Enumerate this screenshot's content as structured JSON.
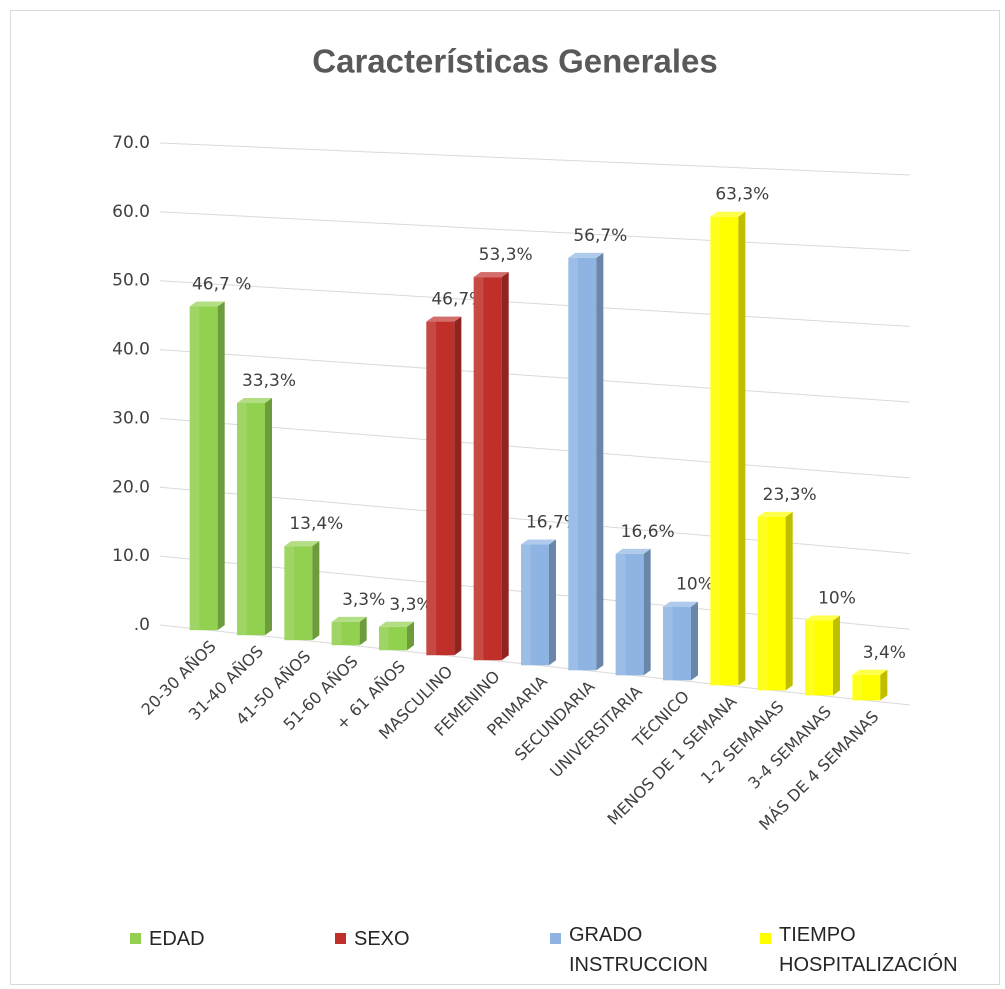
{
  "chart_data": {
    "type": "bar",
    "title": "Características Generales",
    "categories": [
      "20-30 AÑOS",
      "31-40 AÑOS",
      "41-50 AÑOS",
      "51-60 AÑOS",
      "+ 61 AÑOS",
      "MASCULINO",
      "FEMENINO",
      "PRIMARIA",
      "SECUNDARIA",
      "UNIVERSITARIA",
      "TÉCNICO",
      "MENOS DE 1 SEMANA",
      "1-2 SEMANAS",
      "3-4 SEMANAS",
      "MÁS DE 4 SEMANAS"
    ],
    "series": [
      {
        "name": "EDAD",
        "color": "#92d050",
        "values": [
          46.7,
          33.3,
          13.4,
          3.3,
          3.3,
          null,
          null,
          null,
          null,
          null,
          null,
          null,
          null,
          null,
          null
        ],
        "value_labels": [
          "46,7 %",
          "33,3%",
          "13,4%",
          "3,3%",
          "3,3%",
          null,
          null,
          null,
          null,
          null,
          null,
          null,
          null,
          null,
          null
        ]
      },
      {
        "name": "SEXO",
        "color": "#c0302b",
        "values": [
          null,
          null,
          null,
          null,
          null,
          46.7,
          53.3,
          null,
          null,
          null,
          null,
          null,
          null,
          null,
          null
        ],
        "value_labels": [
          null,
          null,
          null,
          null,
          null,
          "46,7%",
          "53,3%",
          null,
          null,
          null,
          null,
          null,
          null,
          null,
          null
        ]
      },
      {
        "name": "GRADO INSTRUCCION",
        "color": "#8eb4e3",
        "values": [
          null,
          null,
          null,
          null,
          null,
          null,
          null,
          16.7,
          56.7,
          16.6,
          10,
          null,
          null,
          null,
          null
        ],
        "value_labels": [
          null,
          null,
          null,
          null,
          null,
          null,
          null,
          "16,7%",
          "56,7%",
          "16,6%",
          "10%",
          null,
          null,
          null,
          null
        ]
      },
      {
        "name": "TIEMPO HOSPITALIZACIÓN",
        "color": "#ffff00",
        "values": [
          null,
          null,
          null,
          null,
          null,
          null,
          null,
          null,
          null,
          null,
          null,
          63.3,
          23.3,
          10,
          3.4
        ],
        "value_labels": [
          null,
          null,
          null,
          null,
          null,
          null,
          null,
          null,
          null,
          null,
          null,
          "63,3%",
          "23,3%",
          "10%",
          "3,4%"
        ]
      }
    ],
    "ylim": [
      0,
      70
    ],
    "yticks": [
      {
        "value": 0,
        "label": ".0"
      },
      {
        "value": 10,
        "label": "10.0"
      },
      {
        "value": 20,
        "label": "20.0"
      },
      {
        "value": 30,
        "label": "30.0"
      },
      {
        "value": 40,
        "label": "40.0"
      },
      {
        "value": 50,
        "label": "50.0"
      },
      {
        "value": 60,
        "label": "60.0"
      },
      {
        "value": 70,
        "label": "70.0"
      }
    ],
    "grid": true,
    "legend": "bottom"
  }
}
